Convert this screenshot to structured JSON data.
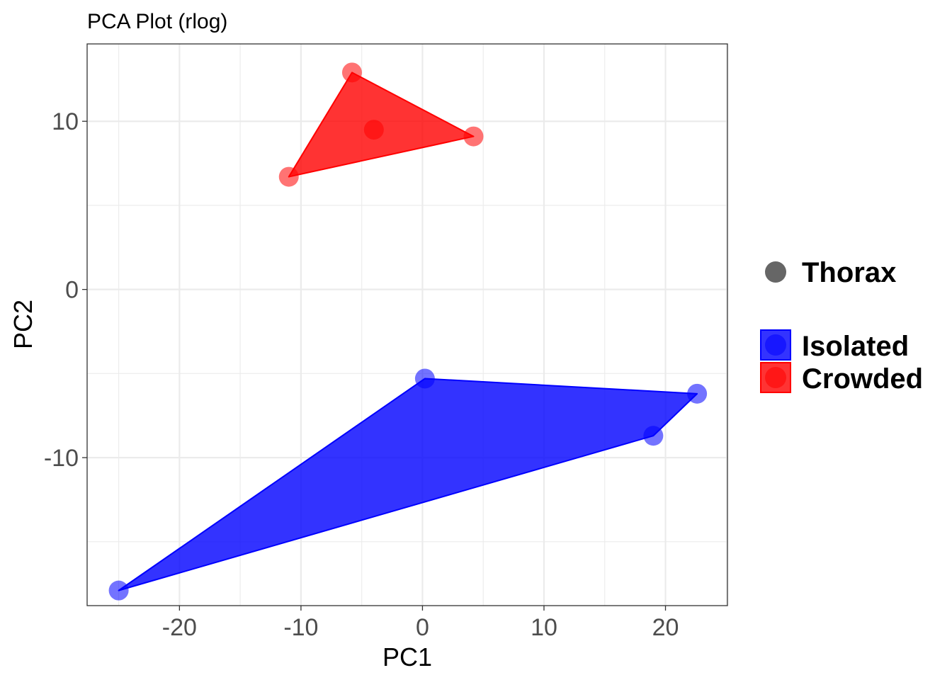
{
  "chart_data": {
    "type": "scatter",
    "title": "PCA Plot (rlog)",
    "xlabel": "PC1",
    "ylabel": "PC2",
    "xlim": [
      -27.6,
      25.1
    ],
    "ylim": [
      -18.8,
      14.6
    ],
    "x_ticks": [
      -20,
      -10,
      0,
      10,
      20
    ],
    "y_ticks": [
      -10,
      0,
      10
    ],
    "x_tick_labels": [
      "-20",
      "-10",
      "0",
      "10",
      "20"
    ],
    "y_tick_labels": [
      "-10",
      "0",
      "10"
    ],
    "grid": true,
    "legend_position": "right",
    "shape_legend": [
      {
        "name": "Thorax",
        "color": "#666666"
      }
    ],
    "series": [
      {
        "name": "Isolated",
        "color": "#0000ff",
        "points": [
          {
            "x": -25.0,
            "y": -17.9
          },
          {
            "x": 0.2,
            "y": -5.3
          },
          {
            "x": 19.0,
            "y": -8.7
          },
          {
            "x": 22.6,
            "y": -6.2
          }
        ],
        "hull": [
          [
            -25.0,
            -17.9
          ],
          [
            0.2,
            -5.3
          ],
          [
            22.6,
            -6.2
          ],
          [
            19.0,
            -8.7
          ]
        ]
      },
      {
        "name": "Crowded",
        "color": "#ff0000",
        "points": [
          {
            "x": -11.0,
            "y": 6.7
          },
          {
            "x": -5.8,
            "y": 12.9
          },
          {
            "x": -4.0,
            "y": 9.5
          },
          {
            "x": 4.2,
            "y": 9.1
          }
        ],
        "hull": [
          [
            -11.0,
            6.7
          ],
          [
            -5.8,
            12.9
          ],
          [
            4.2,
            9.1
          ]
        ]
      }
    ]
  }
}
